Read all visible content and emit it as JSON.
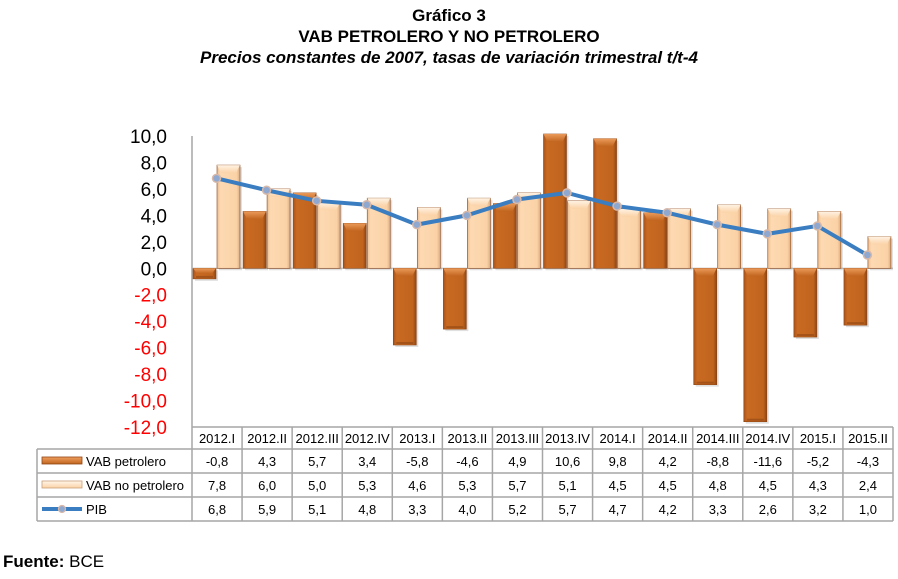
{
  "header": {
    "figure_label": "Gráfico 3",
    "title": "VAB PETROLERO Y NO PETROLERO",
    "subtitle": "Precios constantes de 2007, tasas de variación trimestral t/t-4"
  },
  "footer": {
    "source_label": "Fuente:",
    "source_value": "BCE"
  },
  "colors": {
    "vab_petrolero": "#C0641E",
    "vab_no_petrolero": "#FBD2A6",
    "pib_line": "#3A7DC0",
    "pib_marker": "#B8B8C8",
    "negative_tick": "#FF0000",
    "positive_tick": "#000000",
    "grid": "#A6A6A6"
  },
  "chart_data": {
    "type": "bar",
    "title": "VAB PETROLERO Y NO PETROLERO",
    "subtitle": "Precios constantes de 2007, tasas de variación trimestral t/t-4",
    "xlabel": "",
    "ylabel": "",
    "ylim": [
      -12,
      10
    ],
    "yticks": [
      10,
      8,
      6,
      4,
      2,
      0,
      -2,
      -4,
      -6,
      -8,
      -10,
      -12
    ],
    "ytick_labels": [
      "10,0",
      "8,0",
      "6,0",
      "4,0",
      "2,0",
      "0,0",
      "-2,0",
      "-4,0",
      "-6,0",
      "-8,0",
      "-10,0",
      "-12,0"
    ],
    "grid": false,
    "legend": "data-table-bottom",
    "categories": [
      "2012.I",
      "2012.II",
      "2012.III",
      "2012.IV",
      "2013.I",
      "2013.II",
      "2013.III",
      "2013.IV",
      "2014.I",
      "2014.II",
      "2014.III",
      "2014.IV",
      "2015.I",
      "2015.II"
    ],
    "series": [
      {
        "name": "VAB petrolero",
        "type": "bar",
        "values": [
          -0.8,
          4.3,
          5.7,
          3.4,
          -5.8,
          -4.6,
          4.9,
          10.6,
          9.8,
          4.2,
          -8.8,
          -11.6,
          -5.2,
          -4.3
        ],
        "labels": [
          "-0,8",
          "4,3",
          "5,7",
          "3,4",
          "-5,8",
          "-4,6",
          "4,9",
          "10,6",
          "9,8",
          "4,2",
          "-8,8",
          "-11,6",
          "-5,2",
          "-4,3"
        ]
      },
      {
        "name": "VAB no petrolero",
        "type": "bar",
        "values": [
          7.8,
          6.0,
          5.0,
          5.3,
          4.6,
          5.3,
          5.7,
          5.1,
          4.5,
          4.5,
          4.8,
          4.5,
          4.3,
          2.4
        ],
        "labels": [
          "7,8",
          "6,0",
          "5,0",
          "5,3",
          "4,6",
          "5,3",
          "5,7",
          "5,1",
          "4,5",
          "4,5",
          "4,8",
          "4,5",
          "4,3",
          "2,4"
        ]
      },
      {
        "name": "PIB",
        "type": "line",
        "values": [
          6.8,
          5.9,
          5.1,
          4.8,
          3.3,
          4.0,
          5.2,
          5.7,
          4.7,
          4.2,
          3.3,
          2.6,
          3.2,
          1.0
        ],
        "labels": [
          "6,8",
          "5,9",
          "5,1",
          "4,8",
          "3,3",
          "4,0",
          "5,2",
          "5,7",
          "4,7",
          "4,2",
          "3,3",
          "2,6",
          "3,2",
          "1,0"
        ]
      }
    ]
  }
}
